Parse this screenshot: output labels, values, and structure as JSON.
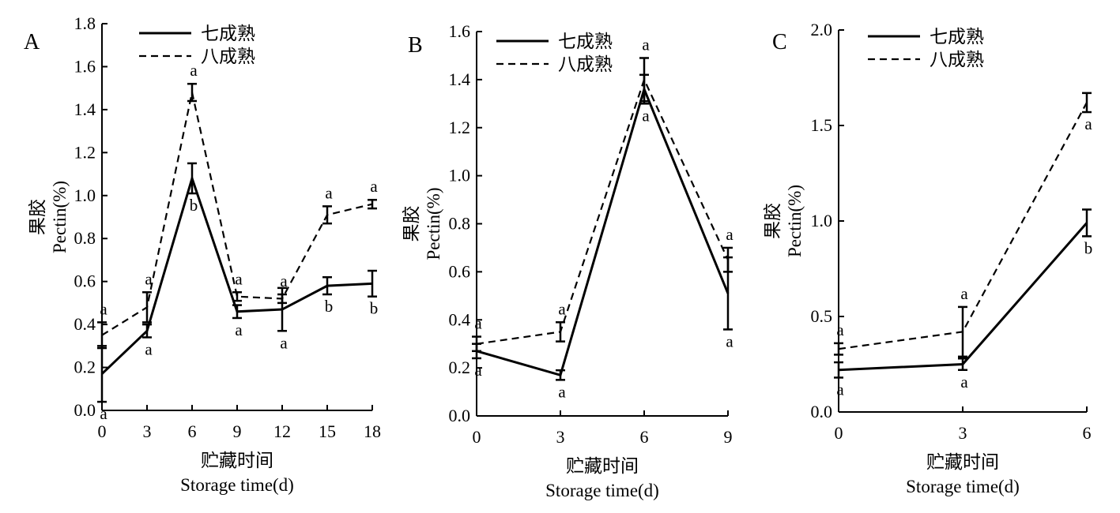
{
  "chart_data": [
    {
      "type": "line",
      "panel": "A",
      "xlabel_cn": "贮藏时间",
      "xlabel_en": "Storage time(d)",
      "ylabel_cn": "果胶",
      "ylabel_en": "Pectin(%)",
      "x": [
        0,
        3,
        6,
        9,
        12,
        15,
        18
      ],
      "xticks": [
        "0",
        "3",
        "6",
        "9",
        "12",
        "15",
        "18"
      ],
      "yticks": [
        "0.0",
        "0.2",
        "0.4",
        "0.6",
        "0.8",
        "1.0",
        "1.2",
        "1.4",
        "1.6",
        "1.8"
      ],
      "xlim": [
        0,
        18
      ],
      "ylim": [
        0,
        1.8
      ],
      "legend_position": "top-left",
      "series": [
        {
          "name": "七成熟",
          "style": "solid",
          "values": [
            0.17,
            0.37,
            1.08,
            0.46,
            0.47,
            0.58,
            0.59
          ],
          "err": [
            0.13,
            0.03,
            0.07,
            0.03,
            0.1,
            0.04,
            0.06
          ],
          "labels": [
            "a",
            "a",
            "b",
            "a",
            "a",
            "b",
            "b"
          ],
          "label_pos": [
            "below",
            "below",
            "below",
            "below",
            "below",
            "below",
            "below"
          ]
        },
        {
          "name": "八成熟",
          "style": "dashed",
          "values": [
            0.35,
            0.48,
            1.48,
            0.53,
            0.52,
            0.91,
            0.96
          ],
          "err": [
            0.06,
            0.07,
            0.04,
            0.02,
            0.02,
            0.04,
            0.02
          ],
          "labels": [
            "a",
            "a",
            "a",
            "a",
            "a",
            "a",
            "a"
          ],
          "label_pos": [
            "above",
            "above",
            "above",
            "above",
            "above",
            "above",
            "above"
          ]
        }
      ]
    },
    {
      "type": "line",
      "panel": "B",
      "xlabel_cn": "贮藏时间",
      "xlabel_en": "Storage time(d)",
      "ylabel_cn": "果胶",
      "ylabel_en": "Pectin(%)",
      "x": [
        0,
        3,
        6,
        9
      ],
      "xticks": [
        "0",
        "3",
        "6",
        "9"
      ],
      "yticks": [
        "0.0",
        "0.2",
        "0.4",
        "0.6",
        "0.8",
        "1.0",
        "1.2",
        "1.4",
        "1.6"
      ],
      "xlim": [
        0,
        9
      ],
      "ylim": [
        0,
        1.6
      ],
      "legend_position": "top-left",
      "series": [
        {
          "name": "七成熟",
          "style": "solid",
          "values": [
            0.27,
            0.17,
            1.36,
            0.51
          ],
          "err": [
            0.03,
            0.02,
            0.06,
            0.15
          ],
          "labels": [
            "a",
            "a",
            "a",
            "a"
          ],
          "label_pos": [
            "below",
            "below",
            "below",
            "below"
          ]
        },
        {
          "name": "八成熟",
          "style": "dashed",
          "values": [
            0.3,
            0.35,
            1.4,
            0.65
          ],
          "err": [
            0.03,
            0.04,
            0.09,
            0.05
          ],
          "labels": [
            "a",
            "a",
            "a",
            "a"
          ],
          "label_pos": [
            "above",
            "above",
            "above",
            "above"
          ]
        }
      ]
    },
    {
      "type": "line",
      "panel": "C",
      "xlabel_cn": "贮藏时间",
      "xlabel_en": "Storage time(d)",
      "ylabel_cn": "果胶",
      "ylabel_en": "Pectin(%)",
      "x": [
        0,
        3,
        6
      ],
      "xticks": [
        "0",
        "3",
        "6"
      ],
      "yticks": [
        "0.0",
        "0.5",
        "1.0",
        "1.5",
        "2.0"
      ],
      "xlim": [
        0,
        6
      ],
      "ylim": [
        0,
        2.0
      ],
      "legend_position": "top-left",
      "series": [
        {
          "name": "七成熟",
          "style": "solid",
          "values": [
            0.22,
            0.25,
            0.99
          ],
          "err": [
            0.04,
            0.03,
            0.07
          ],
          "labels": [
            "a",
            "a",
            "b"
          ],
          "label_pos": [
            "below",
            "below",
            "below"
          ]
        },
        {
          "name": "八成熟",
          "style": "dashed",
          "values": [
            0.33,
            0.42,
            1.62
          ],
          "err": [
            0.03,
            0.13,
            0.05
          ],
          "labels": [
            "a",
            "a",
            "a"
          ],
          "label_pos": [
            "above",
            "above",
            "below"
          ]
        }
      ]
    }
  ]
}
